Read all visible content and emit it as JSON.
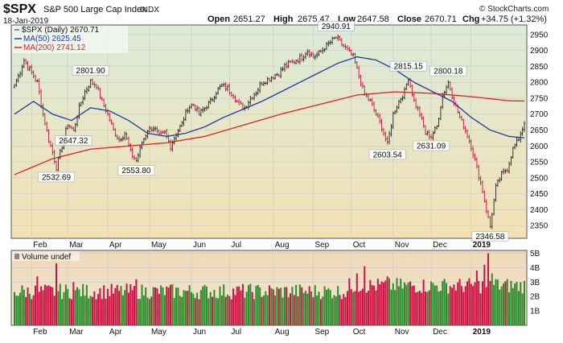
{
  "header": {
    "symbol": "$SPX",
    "name": "S&P 500 Large Cap Index",
    "exchange": "INDX",
    "date": "18-Jan-2019",
    "ohlc": {
      "open_label": "Open",
      "open": "2651.27",
      "high_label": "High",
      "high": "2675.47",
      "low_label": "Low",
      "low": "2647.58",
      "close_label": "Close",
      "close": "2670.71",
      "chg_label": "Chg",
      "chg": "+34.75 (+1.32%)"
    },
    "watermark": "© StockCharts.com"
  },
  "legend": {
    "price": "$SPX (Daily) 2670.71",
    "ma50": "MA(50) 2625.45",
    "ma200": "MA(200) 2741.12"
  },
  "volume_label": "Volume undef",
  "colors": {
    "up": "#2e8b2e",
    "down": "#cc1144",
    "ma50": "#1f3a9e",
    "ma200": "#dd2222",
    "panel_top": "#dcead8",
    "panel_bottom": "#f3e1b4"
  },
  "chart_data": {
    "type": "line",
    "ylim": [
      2310,
      2980
    ],
    "yticks": [
      2350,
      2400,
      2450,
      2500,
      2550,
      2600,
      2650,
      2700,
      2750,
      2800,
      2850,
      2900,
      2950
    ],
    "month_labels": [
      "Feb",
      "Mar",
      "Apr",
      "May",
      "Jun",
      "Jul",
      "Aug",
      "Sep",
      "Oct",
      "Nov",
      "Dec",
      "2019"
    ],
    "price_anchors": [
      [
        0,
        2790
      ],
      [
        3,
        2835
      ],
      [
        5,
        2870
      ],
      [
        8,
        2840
      ],
      [
        12,
        2800
      ],
      [
        15,
        2700
      ],
      [
        18,
        2620
      ],
      [
        20,
        2580
      ],
      [
        22,
        2532.69
      ],
      [
        25,
        2600
      ],
      [
        28,
        2670
      ],
      [
        31,
        2647.32
      ],
      [
        34,
        2720
      ],
      [
        37,
        2770
      ],
      [
        40,
        2801.9
      ],
      [
        43,
        2790
      ],
      [
        46,
        2740
      ],
      [
        49,
        2700
      ],
      [
        52,
        2650
      ],
      [
        55,
        2620
      ],
      [
        58,
        2640
      ],
      [
        61,
        2580
      ],
      [
        64,
        2553.8
      ],
      [
        67,
        2610
      ],
      [
        70,
        2650
      ],
      [
        73,
        2660
      ],
      [
        76,
        2630
      ],
      [
        79,
        2640
      ],
      [
        82,
        2600
      ],
      [
        85,
        2640
      ],
      [
        88,
        2670
      ],
      [
        91,
        2720
      ],
      [
        94,
        2730
      ],
      [
        97,
        2700
      ],
      [
        100,
        2720
      ],
      [
        103,
        2740
      ],
      [
        106,
        2770
      ],
      [
        109,
        2790
      ],
      [
        112,
        2780
      ],
      [
        115,
        2760
      ],
      [
        118,
        2730
      ],
      [
        121,
        2720
      ],
      [
        124,
        2750
      ],
      [
        127,
        2770
      ],
      [
        130,
        2800
      ],
      [
        133,
        2810
      ],
      [
        136,
        2820
      ],
      [
        139,
        2830
      ],
      [
        142,
        2850
      ],
      [
        145,
        2860
      ],
      [
        148,
        2870
      ],
      [
        151,
        2880
      ],
      [
        154,
        2900
      ],
      [
        157,
        2880
      ],
      [
        160,
        2890
      ],
      [
        163,
        2910
      ],
      [
        166,
        2925
      ],
      [
        169,
        2940.91
      ],
      [
        172,
        2920
      ],
      [
        175,
        2900
      ],
      [
        178,
        2880
      ],
      [
        181,
        2820
      ],
      [
        184,
        2760
      ],
      [
        187,
        2740
      ],
      [
        190,
        2700
      ],
      [
        193,
        2660
      ],
      [
        196,
        2603.54
      ],
      [
        199,
        2700
      ],
      [
        202,
        2740
      ],
      [
        205,
        2770
      ],
      [
        207,
        2815.15
      ],
      [
        210,
        2740
      ],
      [
        213,
        2700
      ],
      [
        216,
        2640
      ],
      [
        219,
        2631.09
      ],
      [
        222,
        2660
      ],
      [
        225,
        2760
      ],
      [
        228,
        2800.18
      ],
      [
        231,
        2740
      ],
      [
        234,
        2690
      ],
      [
        237,
        2650
      ],
      [
        240,
        2600
      ],
      [
        243,
        2530
      ],
      [
        246,
        2460
      ],
      [
        248,
        2400
      ],
      [
        250,
        2346.58
      ],
      [
        253,
        2470
      ],
      [
        256,
        2510
      ],
      [
        259,
        2530
      ],
      [
        262,
        2590
      ],
      [
        264,
        2610
      ],
      [
        266,
        2640
      ],
      [
        268,
        2670.71
      ]
    ],
    "ma50_anchors": [
      [
        0,
        2700
      ],
      [
        10,
        2740
      ],
      [
        20,
        2700
      ],
      [
        30,
        2680
      ],
      [
        40,
        2720
      ],
      [
        50,
        2710
      ],
      [
        60,
        2680
      ],
      [
        70,
        2640
      ],
      [
        80,
        2630
      ],
      [
        90,
        2640
      ],
      [
        100,
        2660
      ],
      [
        110,
        2690
      ],
      [
        120,
        2715
      ],
      [
        130,
        2740
      ],
      [
        140,
        2770
      ],
      [
        150,
        2800
      ],
      [
        160,
        2830
      ],
      [
        170,
        2860
      ],
      [
        180,
        2880
      ],
      [
        190,
        2870
      ],
      [
        200,
        2840
      ],
      [
        210,
        2800
      ],
      [
        220,
        2770
      ],
      [
        230,
        2740
      ],
      [
        240,
        2690
      ],
      [
        250,
        2650
      ],
      [
        260,
        2630
      ],
      [
        268,
        2625.45
      ]
    ],
    "ma200_anchors": [
      [
        0,
        2510
      ],
      [
        20,
        2560
      ],
      [
        40,
        2590
      ],
      [
        60,
        2600
      ],
      [
        80,
        2610
      ],
      [
        100,
        2630
      ],
      [
        120,
        2665
      ],
      [
        140,
        2700
      ],
      [
        160,
        2730
      ],
      [
        180,
        2760
      ],
      [
        200,
        2770
      ],
      [
        220,
        2765
      ],
      [
        240,
        2755
      ],
      [
        260,
        2742
      ],
      [
        268,
        2741.12
      ]
    ],
    "annotations": [
      {
        "label": "2532.69",
        "i": 22,
        "value": 2532.69,
        "pos": "below"
      },
      {
        "label": "2647.32",
        "i": 31,
        "value": 2647.32,
        "pos": "below"
      },
      {
        "label": "2801.90",
        "i": 40,
        "value": 2801.9,
        "pos": "above"
      },
      {
        "label": "2553.80",
        "i": 64,
        "value": 2553.8,
        "pos": "below"
      },
      {
        "label": "2940.91",
        "i": 169,
        "value": 2940.91,
        "pos": "above"
      },
      {
        "label": "2603.54",
        "i": 196,
        "value": 2603.54,
        "pos": "below"
      },
      {
        "label": "2815.15",
        "i": 207,
        "value": 2815.15,
        "pos": "above"
      },
      {
        "label": "2631.09",
        "i": 219,
        "value": 2631.09,
        "pos": "below"
      },
      {
        "label": "2800.18",
        "i": 228,
        "value": 2800.18,
        "pos": "above"
      },
      {
        "label": "2346.58",
        "i": 250,
        "value": 2346.58,
        "pos": "below"
      }
    ],
    "volume": {
      "ylim": [
        0,
        5.2
      ],
      "yticks": [
        1,
        2,
        3,
        4,
        5
      ],
      "ytick_labels": [
        "1B",
        "2B",
        "3B",
        "4B",
        "5B"
      ],
      "spikes": [
        {
          "i": 12,
          "value": 3.4
        },
        {
          "i": 22,
          "value": 4.3
        },
        {
          "i": 31,
          "value": 3.0
        },
        {
          "i": 64,
          "value": 3.2
        },
        {
          "i": 180,
          "value": 3.6
        },
        {
          "i": 184,
          "value": 4.1
        },
        {
          "i": 196,
          "value": 3.4
        },
        {
          "i": 243,
          "value": 3.8
        },
        {
          "i": 247,
          "value": 4.2
        },
        {
          "i": 249,
          "value": 5.0
        },
        {
          "i": 251,
          "value": 3.6
        },
        {
          "i": 253,
          "value": 3.2
        }
      ]
    }
  }
}
